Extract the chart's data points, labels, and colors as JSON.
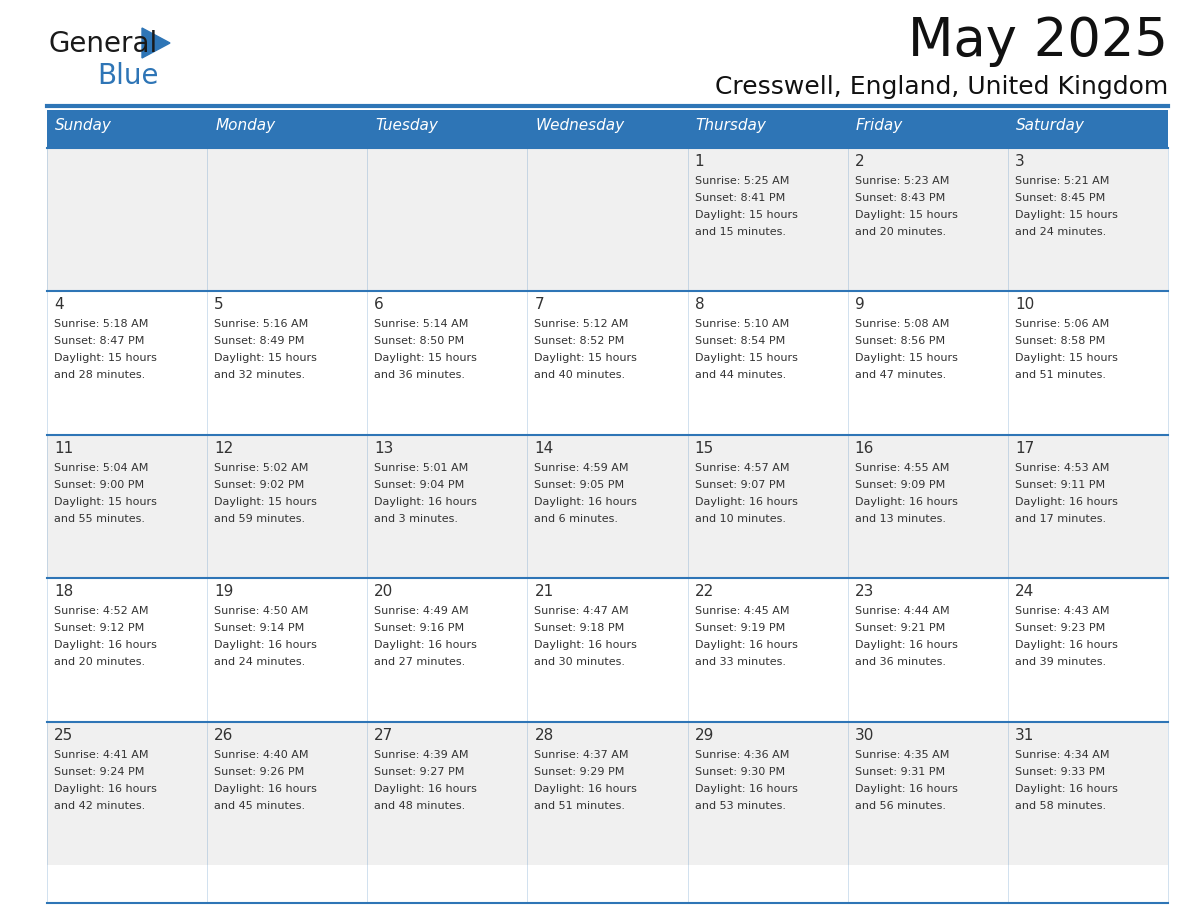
{
  "title": "May 2025",
  "subtitle": "Cresswell, England, United Kingdom",
  "header_bg": "#2E75B6",
  "header_text_color": "#FFFFFF",
  "days_of_week": [
    "Sunday",
    "Monday",
    "Tuesday",
    "Wednesday",
    "Thursday",
    "Friday",
    "Saturday"
  ],
  "row_bg_even": "#F0F0F0",
  "row_bg_odd": "#FFFFFF",
  "grid_line_color": "#2E75B6",
  "cell_text_color": "#333333",
  "logo_text_color": "#1a1a1a",
  "logo_blue_color": "#2E75B6",
  "title_fontsize": 38,
  "subtitle_fontsize": 18,
  "day_header_fontsize": 11,
  "cell_day_fontsize": 11,
  "cell_info_fontsize": 8,
  "calendar_data": [
    [
      null,
      null,
      null,
      null,
      {
        "day": 1,
        "sunrise": "5:25 AM",
        "sunset": "8:41 PM",
        "daylight": "15 hours and 15 minutes."
      },
      {
        "day": 2,
        "sunrise": "5:23 AM",
        "sunset": "8:43 PM",
        "daylight": "15 hours and 20 minutes."
      },
      {
        "day": 3,
        "sunrise": "5:21 AM",
        "sunset": "8:45 PM",
        "daylight": "15 hours and 24 minutes."
      }
    ],
    [
      {
        "day": 4,
        "sunrise": "5:18 AM",
        "sunset": "8:47 PM",
        "daylight": "15 hours and 28 minutes."
      },
      {
        "day": 5,
        "sunrise": "5:16 AM",
        "sunset": "8:49 PM",
        "daylight": "15 hours and 32 minutes."
      },
      {
        "day": 6,
        "sunrise": "5:14 AM",
        "sunset": "8:50 PM",
        "daylight": "15 hours and 36 minutes."
      },
      {
        "day": 7,
        "sunrise": "5:12 AM",
        "sunset": "8:52 PM",
        "daylight": "15 hours and 40 minutes."
      },
      {
        "day": 8,
        "sunrise": "5:10 AM",
        "sunset": "8:54 PM",
        "daylight": "15 hours and 44 minutes."
      },
      {
        "day": 9,
        "sunrise": "5:08 AM",
        "sunset": "8:56 PM",
        "daylight": "15 hours and 47 minutes."
      },
      {
        "day": 10,
        "sunrise": "5:06 AM",
        "sunset": "8:58 PM",
        "daylight": "15 hours and 51 minutes."
      }
    ],
    [
      {
        "day": 11,
        "sunrise": "5:04 AM",
        "sunset": "9:00 PM",
        "daylight": "15 hours and 55 minutes."
      },
      {
        "day": 12,
        "sunrise": "5:02 AM",
        "sunset": "9:02 PM",
        "daylight": "15 hours and 59 minutes."
      },
      {
        "day": 13,
        "sunrise": "5:01 AM",
        "sunset": "9:04 PM",
        "daylight": "16 hours and 3 minutes."
      },
      {
        "day": 14,
        "sunrise": "4:59 AM",
        "sunset": "9:05 PM",
        "daylight": "16 hours and 6 minutes."
      },
      {
        "day": 15,
        "sunrise": "4:57 AM",
        "sunset": "9:07 PM",
        "daylight": "16 hours and 10 minutes."
      },
      {
        "day": 16,
        "sunrise": "4:55 AM",
        "sunset": "9:09 PM",
        "daylight": "16 hours and 13 minutes."
      },
      {
        "day": 17,
        "sunrise": "4:53 AM",
        "sunset": "9:11 PM",
        "daylight": "16 hours and 17 minutes."
      }
    ],
    [
      {
        "day": 18,
        "sunrise": "4:52 AM",
        "sunset": "9:12 PM",
        "daylight": "16 hours and 20 minutes."
      },
      {
        "day": 19,
        "sunrise": "4:50 AM",
        "sunset": "9:14 PM",
        "daylight": "16 hours and 24 minutes."
      },
      {
        "day": 20,
        "sunrise": "4:49 AM",
        "sunset": "9:16 PM",
        "daylight": "16 hours and 27 minutes."
      },
      {
        "day": 21,
        "sunrise": "4:47 AM",
        "sunset": "9:18 PM",
        "daylight": "16 hours and 30 minutes."
      },
      {
        "day": 22,
        "sunrise": "4:45 AM",
        "sunset": "9:19 PM",
        "daylight": "16 hours and 33 minutes."
      },
      {
        "day": 23,
        "sunrise": "4:44 AM",
        "sunset": "9:21 PM",
        "daylight": "16 hours and 36 minutes."
      },
      {
        "day": 24,
        "sunrise": "4:43 AM",
        "sunset": "9:23 PM",
        "daylight": "16 hours and 39 minutes."
      }
    ],
    [
      {
        "day": 25,
        "sunrise": "4:41 AM",
        "sunset": "9:24 PM",
        "daylight": "16 hours and 42 minutes."
      },
      {
        "day": 26,
        "sunrise": "4:40 AM",
        "sunset": "9:26 PM",
        "daylight": "16 hours and 45 minutes."
      },
      {
        "day": 27,
        "sunrise": "4:39 AM",
        "sunset": "9:27 PM",
        "daylight": "16 hours and 48 minutes."
      },
      {
        "day": 28,
        "sunrise": "4:37 AM",
        "sunset": "9:29 PM",
        "daylight": "16 hours and 51 minutes."
      },
      {
        "day": 29,
        "sunrise": "4:36 AM",
        "sunset": "9:30 PM",
        "daylight": "16 hours and 53 minutes."
      },
      {
        "day": 30,
        "sunrise": "4:35 AM",
        "sunset": "9:31 PM",
        "daylight": "16 hours and 56 minutes."
      },
      {
        "day": 31,
        "sunrise": "4:34 AM",
        "sunset": "9:33 PM",
        "daylight": "16 hours and 58 minutes."
      }
    ]
  ]
}
